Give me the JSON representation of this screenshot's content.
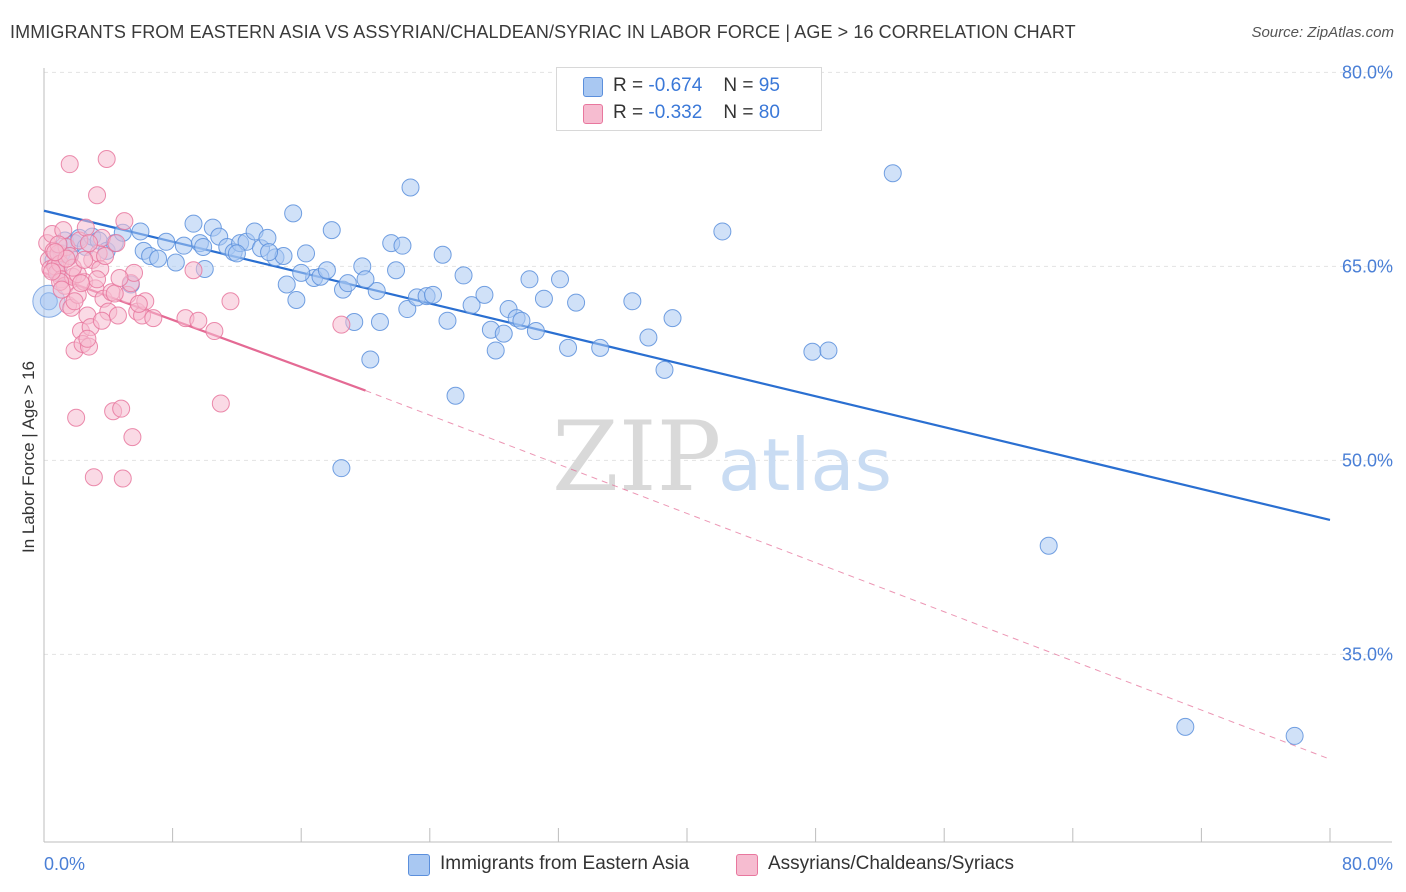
{
  "title": "IMMIGRANTS FROM EASTERN ASIA VS ASSYRIAN/CHALDEAN/SYRIAC IN LABOR FORCE | AGE > 16 CORRELATION CHART",
  "source": "Source: ZipAtlas.com",
  "watermark": {
    "zip": "ZIP",
    "atlas": "atlas"
  },
  "legend_top": [
    {
      "r_label": "R =",
      "r_value": "-0.674",
      "n_label": "N =",
      "n_value": "95"
    },
    {
      "r_label": "R =",
      "r_value": "-0.332",
      "n_label": "N =",
      "n_value": "80"
    }
  ],
  "colors": {
    "blue_fill": "#a9c8f2",
    "blue_stroke": "#5b8fdc",
    "blue_line": "#2a6fd1",
    "pink_fill": "#f6bcd0",
    "pink_stroke": "#e8779e",
    "pink_line": "#e46a94",
    "grid": "#e3e3e3",
    "axis_text": "#4a7fd6"
  },
  "chart_data": {
    "type": "scatter",
    "xlabel": "",
    "ylabel": "In Labor Force | Age > 16",
    "xlim": [
      0,
      80
    ],
    "ylim": [
      20.5,
      82.5
    ],
    "x_tick_labels": [
      {
        "value": 0,
        "label": "0.0%"
      },
      {
        "value": 80,
        "label": "80.0%"
      }
    ],
    "y_tick_labels": [
      {
        "value": 80,
        "label": "80.0%"
      },
      {
        "value": 65,
        "label": "65.0%"
      },
      {
        "value": 50,
        "label": "50.0%"
      },
      {
        "value": 35,
        "label": "35.0%"
      }
    ],
    "grid": true,
    "legend_position": "bottom",
    "series": [
      {
        "name": "Immigrants from Eastern Asia",
        "color": "#5b8fdc",
        "trend": {
          "x": [
            0,
            80
          ],
          "y": [
            69.3,
            45.4
          ],
          "style": "solid"
        },
        "points": [
          [
            0.3,
            62.3
          ],
          [
            0.6,
            65.5
          ],
          [
            0.9,
            64.5
          ],
          [
            1.1,
            66.0
          ],
          [
            1.3,
            67.0
          ],
          [
            1.6,
            65.8
          ],
          [
            1.9,
            66.8
          ],
          [
            2.2,
            67.2
          ],
          [
            2.6,
            66.5
          ],
          [
            3.0,
            67.3
          ],
          [
            3.4,
            67.0
          ],
          [
            3.9,
            66.2
          ],
          [
            4.4,
            66.8
          ],
          [
            4.9,
            67.6
          ],
          [
            5.4,
            63.6
          ],
          [
            6.2,
            66.2
          ],
          [
            6.6,
            65.8
          ],
          [
            7.1,
            65.6
          ],
          [
            7.6,
            66.9
          ],
          [
            8.2,
            65.3
          ],
          [
            8.7,
            66.6
          ],
          [
            9.3,
            68.3
          ],
          [
            9.7,
            66.8
          ],
          [
            10.0,
            64.8
          ],
          [
            10.5,
            68.0
          ],
          [
            10.9,
            67.3
          ],
          [
            11.4,
            66.5
          ],
          [
            11.8,
            66.1
          ],
          [
            12.2,
            66.8
          ],
          [
            12.6,
            66.9
          ],
          [
            13.1,
            67.7
          ],
          [
            13.5,
            66.4
          ],
          [
            13.9,
            67.2
          ],
          [
            14.4,
            65.7
          ],
          [
            14.9,
            65.8
          ],
          [
            15.1,
            63.6
          ],
          [
            15.5,
            69.1
          ],
          [
            15.7,
            62.4
          ],
          [
            16.3,
            66.0
          ],
          [
            16.8,
            64.1
          ],
          [
            17.2,
            64.2
          ],
          [
            17.6,
            64.7
          ],
          [
            17.9,
            67.8
          ],
          [
            18.6,
            63.2
          ],
          [
            18.9,
            63.7
          ],
          [
            19.3,
            60.7
          ],
          [
            19.8,
            65.0
          ],
          [
            20.3,
            57.8
          ],
          [
            20.7,
            63.1
          ],
          [
            20.9,
            60.7
          ],
          [
            21.6,
            66.8
          ],
          [
            21.9,
            64.7
          ],
          [
            22.3,
            66.6
          ],
          [
            22.6,
            61.7
          ],
          [
            22.8,
            71.1
          ],
          [
            23.2,
            62.6
          ],
          [
            23.8,
            62.7
          ],
          [
            24.2,
            62.8
          ],
          [
            24.8,
            65.9
          ],
          [
            25.1,
            60.8
          ],
          [
            25.6,
            55.0
          ],
          [
            26.1,
            64.3
          ],
          [
            26.6,
            62.0
          ],
          [
            27.4,
            62.8
          ],
          [
            27.8,
            60.1
          ],
          [
            28.1,
            58.5
          ],
          [
            28.6,
            59.8
          ],
          [
            28.9,
            61.7
          ],
          [
            29.4,
            61.0
          ],
          [
            29.7,
            60.8
          ],
          [
            30.2,
            64.0
          ],
          [
            30.6,
            60.0
          ],
          [
            31.1,
            62.5
          ],
          [
            32.1,
            64.0
          ],
          [
            32.6,
            58.7
          ],
          [
            33.1,
            62.2
          ],
          [
            34.6,
            58.7
          ],
          [
            36.6,
            62.3
          ],
          [
            37.6,
            59.5
          ],
          [
            38.6,
            57.0
          ],
          [
            39.1,
            61.0
          ],
          [
            42.2,
            67.7
          ],
          [
            47.8,
            58.4
          ],
          [
            48.8,
            58.5
          ],
          [
            52.8,
            72.2
          ],
          [
            62.5,
            43.4
          ],
          [
            71.0,
            29.4
          ],
          [
            77.8,
            28.7
          ],
          [
            18.5,
            49.4
          ],
          [
            6.0,
            67.7
          ],
          [
            9.9,
            66.5
          ],
          [
            12.0,
            66.0
          ],
          [
            14.0,
            66.1
          ],
          [
            16.0,
            64.5
          ],
          [
            20.0,
            64.0
          ]
        ]
      },
      {
        "name": "Assyrians/Chaldeans/Syriacs",
        "color": "#e8779e",
        "trend": {
          "x": [
            0,
            20
          ],
          "y": [
            64.5,
            55.4
          ],
          "style": "solid",
          "extended_to": {
            "x": 80,
            "y": 26.9,
            "style": "dashed"
          }
        },
        "points": [
          [
            0.2,
            66.8
          ],
          [
            0.3,
            65.5
          ],
          [
            0.4,
            64.8
          ],
          [
            0.5,
            67.5
          ],
          [
            0.6,
            66.2
          ],
          [
            0.7,
            65.0
          ],
          [
            0.8,
            64.5
          ],
          [
            0.9,
            66.0
          ],
          [
            1.0,
            65.2
          ],
          [
            1.1,
            64.0
          ],
          [
            1.2,
            67.8
          ],
          [
            1.3,
            63.5
          ],
          [
            1.4,
            66.5
          ],
          [
            1.5,
            62.0
          ],
          [
            1.6,
            65.8
          ],
          [
            1.7,
            61.8
          ],
          [
            1.8,
            64.2
          ],
          [
            1.9,
            58.5
          ],
          [
            2.0,
            53.3
          ],
          [
            2.1,
            62.8
          ],
          [
            2.2,
            67.0
          ],
          [
            2.3,
            60.0
          ],
          [
            2.4,
            59.0
          ],
          [
            2.5,
            63.8
          ],
          [
            2.6,
            68.0
          ],
          [
            2.7,
            61.2
          ],
          [
            2.8,
            58.8
          ],
          [
            2.9,
            60.3
          ],
          [
            3.0,
            65.5
          ],
          [
            3.1,
            48.7
          ],
          [
            3.2,
            63.3
          ],
          [
            3.3,
            70.5
          ],
          [
            3.4,
            66.0
          ],
          [
            3.5,
            64.8
          ],
          [
            3.6,
            67.2
          ],
          [
            3.7,
            62.5
          ],
          [
            3.8,
            65.8
          ],
          [
            4.0,
            61.5
          ],
          [
            4.2,
            63.0
          ],
          [
            4.3,
            53.8
          ],
          [
            4.5,
            66.8
          ],
          [
            4.6,
            61.2
          ],
          [
            4.8,
            54.0
          ],
          [
            4.9,
            48.6
          ],
          [
            5.0,
            68.5
          ],
          [
            5.2,
            62.8
          ],
          [
            5.4,
            63.7
          ],
          [
            5.5,
            51.8
          ],
          [
            5.6,
            64.5
          ],
          [
            5.8,
            61.5
          ],
          [
            6.1,
            61.2
          ],
          [
            6.3,
            62.3
          ],
          [
            8.8,
            61.0
          ],
          [
            9.3,
            64.7
          ],
          [
            9.6,
            60.8
          ],
          [
            10.6,
            60.0
          ],
          [
            11.0,
            54.4
          ],
          [
            11.6,
            62.3
          ],
          [
            18.5,
            60.5
          ],
          [
            1.6,
            72.9
          ],
          [
            3.9,
            73.3
          ],
          [
            2.1,
            64.4
          ],
          [
            2.8,
            66.8
          ],
          [
            1.0,
            63.8
          ],
          [
            1.8,
            64.9
          ],
          [
            2.5,
            65.5
          ],
          [
            3.3,
            64.0
          ],
          [
            4.4,
            62.9
          ],
          [
            0.9,
            66.7
          ],
          [
            1.4,
            65.6
          ],
          [
            0.5,
            64.6
          ],
          [
            0.7,
            66.1
          ],
          [
            1.1,
            63.2
          ],
          [
            1.9,
            62.3
          ],
          [
            2.3,
            63.7
          ],
          [
            2.7,
            59.4
          ],
          [
            3.6,
            60.8
          ],
          [
            4.7,
            64.1
          ],
          [
            5.9,
            62.1
          ],
          [
            6.8,
            61.0
          ]
        ]
      }
    ]
  }
}
